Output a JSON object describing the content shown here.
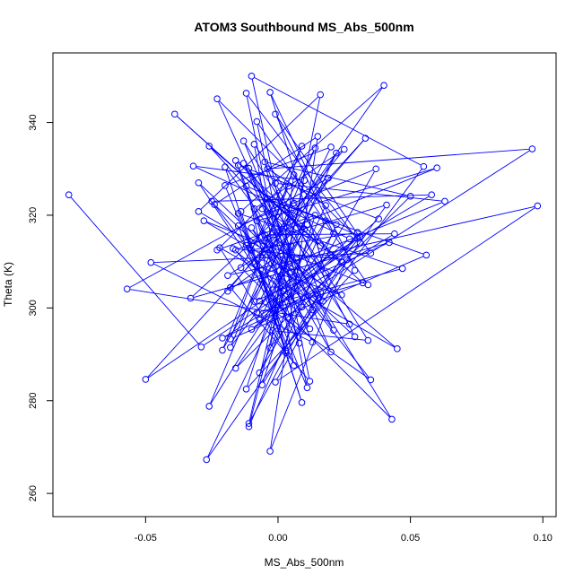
{
  "chart_data": {
    "type": "line",
    "title": "ATOM3 Southbound MS_Abs_500nm",
    "xlabel": "MS_Abs_500nm",
    "ylabel": "Theta (K)",
    "xlim": [
      -0.085,
      0.105
    ],
    "ylim": [
      255,
      355
    ],
    "x_ticks": [
      -0.05,
      0.0,
      0.05,
      0.1
    ],
    "x_tick_labels": [
      "-0.05",
      "0.00",
      "0.05",
      "0.10"
    ],
    "y_ticks": [
      260,
      280,
      300,
      320,
      340
    ],
    "y_tick_labels": [
      "260",
      "280",
      "300",
      "320",
      "340"
    ],
    "grid": false,
    "legend": "none",
    "series_color": "#0000ff",
    "series": [
      {
        "marker": "open-circle",
        "points": [
          [
            -0.079,
            324.4
          ],
          [
            -0.029,
            291.6
          ],
          [
            0.031,
            314.0
          ],
          [
            -0.012,
            346.3
          ],
          [
            0.011,
            282.8
          ],
          [
            -0.02,
            326.4
          ],
          [
            0.02,
            334.7
          ],
          [
            -0.009,
            301.4
          ],
          [
            0.042,
            314.1
          ],
          [
            -0.033,
            302.1
          ],
          [
            0.006,
            322.6
          ],
          [
            -0.026,
            278.8
          ],
          [
            0.018,
            318.8
          ],
          [
            -0.007,
            286.0
          ],
          [
            0.037,
            330.0
          ],
          [
            -0.015,
            317.7
          ],
          [
            0.003,
            290.7
          ],
          [
            0.055,
            330.5
          ],
          [
            -0.01,
            350.0
          ],
          [
            0.009,
            300.2
          ],
          [
            -0.017,
            312.8
          ],
          [
            0.026,
            310.4
          ],
          [
            -0.003,
            269.1
          ],
          [
            0.015,
            337.0
          ],
          [
            -0.024,
            322.3
          ],
          [
            0.029,
            293.8
          ],
          [
            -0.001,
            326.9
          ],
          [
            0.063,
            323.0
          ],
          [
            -0.018,
            304.4
          ],
          [
            0.012,
            284.2
          ],
          [
            -0.008,
            340.2
          ],
          [
            0.034,
            305.0
          ],
          [
            -0.028,
            318.8
          ],
          [
            0.005,
            307.8
          ],
          [
            -0.013,
            331.2
          ],
          [
            0.021,
            295.2
          ],
          [
            -0.005,
            315.8
          ],
          [
            0.044,
            316.0
          ],
          [
            -0.021,
            293.5
          ],
          [
            0.016,
            303.4
          ],
          [
            -0.011,
            275.1
          ],
          [
            0.01,
            327.5
          ],
          [
            -0.032,
            330.6
          ],
          [
            0.027,
            314.9
          ],
          [
            -0.002,
            300.9
          ],
          [
            0.047,
            308.5
          ],
          [
            -0.015,
            320.4
          ],
          [
            0.006,
            287.6
          ],
          [
            -0.009,
            335.3
          ],
          [
            0.02,
            311.5
          ],
          [
            -0.05,
            284.6
          ],
          [
            0.033,
            336.6
          ],
          [
            -0.006,
            310.9
          ],
          [
            0.013,
            299.6
          ],
          [
            -0.023,
            345.1
          ],
          [
            0.03,
            315.0
          ],
          [
            -0.01,
            295.4
          ],
          [
            0.096,
            334.3
          ],
          [
            -0.004,
            330.0
          ],
          [
            0.018,
            322.1
          ],
          [
            -0.027,
            267.3
          ],
          [
            0.041,
            322.2
          ],
          [
            -0.012,
            313.5
          ],
          [
            0.008,
            292.4
          ],
          [
            -0.016,
            331.8
          ],
          [
            0.024,
            309.9
          ],
          [
            -0.001,
            284.0
          ],
          [
            0.098,
            322.0
          ],
          [
            -0.019,
            307.0
          ],
          [
            0.011,
            318.0
          ],
          [
            -0.008,
            299.0
          ],
          [
            0.032,
            305.4
          ],
          [
            -0.039,
            341.8
          ],
          [
            0.016,
            313.4
          ],
          [
            -0.006,
            321.4
          ],
          [
            0.043,
            276.0
          ],
          [
            -0.014,
            308.7
          ],
          [
            0.004,
            326.3
          ],
          [
            -0.021,
            290.9
          ],
          [
            0.022,
            333.4
          ],
          [
            -0.002,
            303.9
          ],
          [
            0.058,
            324.4
          ],
          [
            -0.025,
            323.0
          ],
          [
            0.012,
            295.5
          ],
          [
            -0.01,
            317.3
          ],
          [
            0.035,
            284.5
          ],
          [
            -0.007,
            301.5
          ],
          [
            0.019,
            328.0
          ],
          [
            -0.057,
            304.1
          ],
          [
            0.027,
            296.5
          ],
          [
            -0.011,
            330.1
          ],
          [
            0.007,
            310.8
          ],
          [
            -0.018,
            291.5
          ],
          [
            0.014,
            334.5
          ],
          [
            -0.004,
            315.0
          ],
          [
            0.045,
            291.2
          ],
          [
            -0.022,
            313.0
          ],
          [
            0.003,
            290.3
          ],
          [
            -0.012,
            326.3
          ],
          [
            0.031,
            315.4
          ],
          [
            -0.003,
            291.4
          ],
          [
            0.016,
            346.0
          ],
          [
            -0.03,
            320.8
          ],
          [
            0.024,
            302.8
          ],
          [
            -0.008,
            309.0
          ],
          [
            0.04,
            348.0
          ],
          [
            -0.014,
            320.8
          ],
          [
            0.009,
            279.6
          ],
          [
            -0.02,
            330.4
          ],
          [
            0.017,
            301.5
          ],
          [
            -0.005,
            331.5
          ],
          [
            0.05,
            324.1
          ],
          [
            -0.016,
            287.0
          ],
          [
            0.021,
            316.1
          ],
          [
            -0.001,
            341.8
          ],
          [
            0.035,
            311.8
          ],
          [
            -0.048,
            309.8
          ],
          [
            0.013,
            292.6
          ],
          [
            -0.009,
            321.4
          ],
          [
            0.025,
            334.2
          ],
          [
            -0.019,
            303.6
          ],
          [
            0.005,
            313.3
          ],
          [
            -0.012,
            282.5
          ],
          [
            0.029,
            308.1
          ],
          [
            -0.003,
            346.5
          ],
          [
            0.018,
            307.5
          ],
          [
            -0.026,
            334.9
          ],
          [
            0.01,
            317.0
          ],
          [
            -0.007,
            297.4
          ],
          [
            0.038,
            319.2
          ],
          [
            -0.015,
            330.8
          ],
          [
            0.002,
            303.7
          ],
          [
            -0.011,
            274.4
          ],
          [
            0.022,
            318.0
          ],
          [
            -0.004,
            323.5
          ],
          [
            0.056,
            311.4
          ],
          [
            -0.018,
            293.3
          ],
          [
            0.009,
            334.9
          ],
          [
            -0.01,
            312.5
          ],
          [
            0.03,
            316.3
          ],
          [
            -0.006,
            283.4
          ],
          [
            0.014,
            320.0
          ],
          [
            -0.023,
            312.5
          ],
          [
            0.006,
            328.7
          ],
          [
            -0.002,
            295.1
          ],
          [
            0.034,
            293.0
          ],
          [
            -0.013,
            336.0
          ],
          [
            0.02,
            290.5
          ],
          [
            -0.008,
            318.8
          ],
          [
            0.06,
            330.2
          ],
          [
            -0.016,
            312.5
          ],
          [
            0.004,
            298.0
          ],
          [
            -0.03,
            327.0
          ],
          [
            0.015,
            302.8
          ]
        ]
      }
    ]
  }
}
